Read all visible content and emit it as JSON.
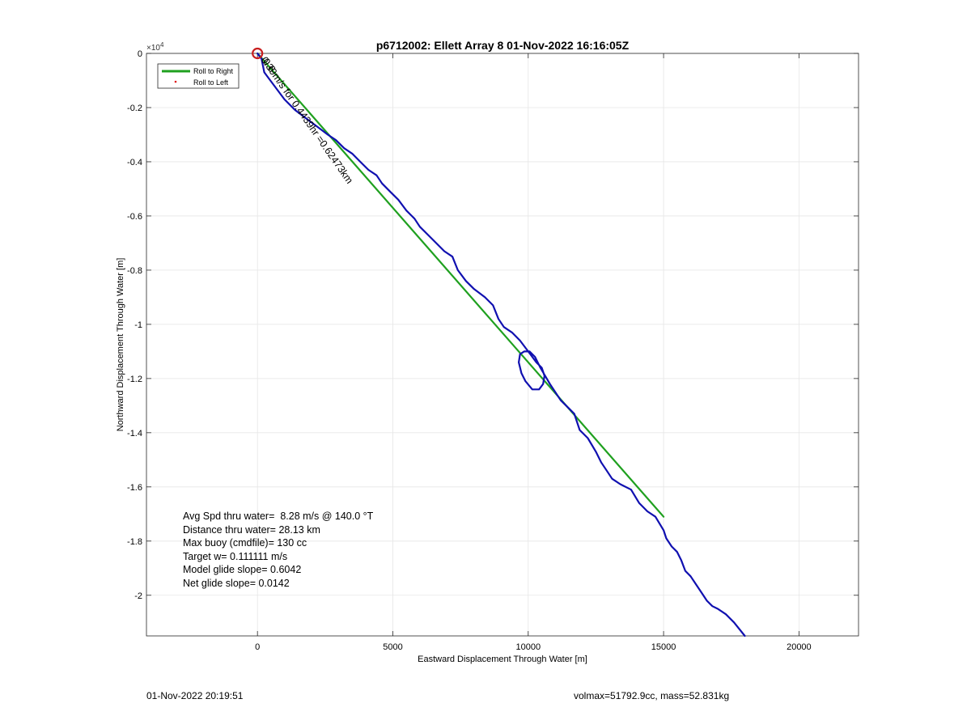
{
  "chart_data": {
    "type": "line",
    "title": "p6712002: Ellett Array 8 01-Nov-2022 16:16:05Z",
    "xlabel": "Eastward Displacement Through Water [m]",
    "ylabel": "Northward Displacement Through Water [m]",
    "xlim": [
      -4100,
      22200
    ],
    "ylim": [
      -2.15,
      0.0
    ],
    "y_exponent_label": "×10",
    "y_exponent_power": "4",
    "x_ticks": [
      0,
      5000,
      10000,
      15000,
      20000
    ],
    "x_tick_labels": [
      "0",
      "5000",
      "10000",
      "15000",
      "20000"
    ],
    "y_ticks": [
      0,
      -0.2,
      -0.4,
      -0.6,
      -0.8,
      -1.0,
      -1.2,
      -1.4,
      -1.6,
      -1.8,
      -2.0
    ],
    "y_tick_labels": [
      "0",
      "-0.2",
      "-0.4",
      "-0.6",
      "-0.8",
      "-1",
      "-1.2",
      "-1.4",
      "-1.6",
      "-1.8",
      "-2"
    ],
    "grid": true,
    "legend_position": "top-left",
    "series": [
      {
        "name": "Roll to Right",
        "color": "#1fa01f",
        "x": [
          0,
          15000
        ],
        "y": [
          0,
          -1.71
        ]
      },
      {
        "name": "Roll to Left",
        "color": "#e01b1b",
        "marker": "dot",
        "x": [],
        "y": []
      },
      {
        "color": "#1010b0",
        "x": [
          0,
          150,
          250,
          400,
          700,
          1000,
          1400,
          1800,
          2200,
          2600,
          2900,
          3200,
          3500,
          3800,
          4100,
          4400,
          4600,
          4900,
          5200,
          5500,
          5800,
          6000,
          6300,
          6600,
          6900,
          7200,
          7400,
          7700,
          8000,
          8400,
          8700,
          8900,
          9100,
          9400,
          9700,
          10000,
          10300,
          10500,
          10600,
          10550,
          10400,
          10150,
          9900,
          9750,
          9650,
          9700,
          9850,
          10050,
          10250,
          10350,
          10450,
          10800,
          11200,
          11500,
          11700,
          11900,
          12200,
          12500,
          12700,
          12900,
          13100,
          13400,
          13800,
          14100,
          14400,
          14700,
          15000,
          15100,
          15300,
          15500,
          15650,
          15800,
          16000,
          16200,
          16400,
          16600,
          16800,
          17000,
          17300,
          17600,
          18000
        ],
        "y": [
          0,
          -0.02,
          -0.07,
          -0.09,
          -0.13,
          -0.17,
          -0.21,
          -0.24,
          -0.27,
          -0.3,
          -0.32,
          -0.35,
          -0.37,
          -0.4,
          -0.43,
          -0.45,
          -0.48,
          -0.51,
          -0.54,
          -0.58,
          -0.61,
          -0.64,
          -0.67,
          -0.7,
          -0.73,
          -0.75,
          -0.8,
          -0.84,
          -0.87,
          -0.9,
          -0.93,
          -0.98,
          -1.01,
          -1.03,
          -1.06,
          -1.1,
          -1.14,
          -1.16,
          -1.19,
          -1.22,
          -1.24,
          -1.24,
          -1.21,
          -1.18,
          -1.14,
          -1.11,
          -1.1,
          -1.1,
          -1.12,
          -1.14,
          -1.16,
          -1.22,
          -1.28,
          -1.31,
          -1.33,
          -1.39,
          -1.42,
          -1.47,
          -1.51,
          -1.54,
          -1.57,
          -1.59,
          -1.61,
          -1.66,
          -1.69,
          -1.71,
          -1.76,
          -1.79,
          -1.82,
          -1.84,
          -1.87,
          -1.91,
          -1.93,
          -1.96,
          -1.99,
          -2.02,
          -2.04,
          -2.05,
          -2.07,
          -2.1,
          -2.15
        ]
      }
    ],
    "marker_start": {
      "color": "#c81e1e",
      "x": 0,
      "y": 0
    },
    "rotated_annotation": "0.39m/s for 0.4439hr =0.62473km",
    "annotation_overlap": "0.6"
  },
  "stats": {
    "line1": "Avg Spd thru water=  8.28 m/s @ 140.0 °T",
    "line2": "Distance thru water= 28.13 km",
    "line3": "Max buoy (cmdfile)= 130 cc",
    "line4": "Target w= 0.111111 m/s",
    "line5": "Model glide slope= 0.6042",
    "line6": "Net glide slope= 0.0142"
  },
  "footer": {
    "timestamp": "01-Nov-2022 20:19:51",
    "volmass": "volmax=51792.9cc, mass=52.831kg"
  }
}
